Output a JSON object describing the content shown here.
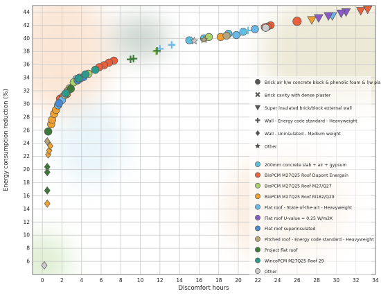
{
  "chart_data": {
    "type": "scatter",
    "title": "",
    "xlabel": "Discomfort hours",
    "ylabel": "Energy consumption reduction (%)",
    "xlim": [
      -1,
      34
    ],
    "ylim": [
      4,
      45
    ],
    "x_ticks": [
      "0",
      "2",
      "4",
      "6",
      "8",
      "10",
      "12",
      "14",
      "16",
      "18",
      "20",
      "22",
      "24",
      "26",
      "28",
      "30",
      "32",
      "34"
    ],
    "y_ticks": [
      "6",
      "8",
      "10",
      "12",
      "14",
      "16",
      "18",
      "20",
      "22",
      "24",
      "26",
      "28",
      "30",
      "32",
      "34",
      "36",
      "38",
      "40",
      "42",
      "44"
    ],
    "grid": true,
    "legend_position": "right",
    "shape_legend": [
      {
        "marker": "circle",
        "label": "Brick air h/w concrete block & phenolic foam & l/w plaster"
      },
      {
        "marker": "x",
        "label": "Brick cavity with dense plaster"
      },
      {
        "marker": "triangle",
        "label": "Super insulated brick/block external wall"
      },
      {
        "marker": "plus",
        "label": "Wall - Energy code standard - Heavyweight"
      },
      {
        "marker": "diamond",
        "label": "Wall - Uninsulated - Medium weight"
      },
      {
        "marker": "star",
        "label": "Other"
      }
    ],
    "series": [
      {
        "name": "200mm concrete slab + air + gypsum",
        "color": "#5bc0de",
        "points": [
          [
            19,
            40.7
          ],
          [
            20.5,
            41
          ],
          [
            21,
            41.2
          ],
          [
            15,
            39.7
          ],
          [
            16.5,
            40
          ],
          [
            3.5,
            33.8
          ],
          [
            3.8,
            34
          ]
        ]
      },
      {
        "name": "BioPCM M27Q25 Roof Dupont Energain",
        "color": "#e8603c",
        "points": [
          [
            33.2,
            44.4
          ],
          [
            32.5,
            44.2
          ],
          [
            26,
            42.6
          ],
          [
            23.3,
            42
          ],
          [
            23,
            41.8
          ],
          [
            22.7,
            41.7
          ],
          [
            7.3,
            36.6
          ],
          [
            6.8,
            36.3
          ],
          [
            6.3,
            35.9
          ],
          [
            5.8,
            35.6
          ],
          [
            1.8,
            30.8
          ],
          [
            2.1,
            31.1
          ]
        ]
      },
      {
        "name": "BioPCM M27Q25 Roof M27/Q27",
        "color": "#a8d26a",
        "points": [
          [
            3.2,
            33.3
          ],
          [
            3.9,
            33.9
          ],
          [
            4.7,
            34.6
          ],
          [
            2.8,
            32.4
          ],
          [
            17,
            40.2
          ],
          [
            11.6,
            38
          ]
        ]
      },
      {
        "name": "BioPCM M27Q25 Roof M182/Q29",
        "color": "#f0a030",
        "points": [
          [
            0.5,
            14.8
          ],
          [
            0.6,
            22.3
          ],
          [
            0.7,
            22.9
          ],
          [
            0.8,
            23.6
          ],
          [
            0.9,
            26.9
          ],
          [
            1.0,
            27.6
          ],
          [
            1.2,
            28.5
          ],
          [
            1.4,
            29.1
          ],
          [
            18.2,
            40.2
          ],
          [
            27.5,
            42.8
          ],
          [
            2.5,
            31.5
          ]
        ]
      },
      {
        "name": "Flat roof - State-of-the-art - Heavyweight",
        "color": "#6ab8e8",
        "points": [
          [
            12,
            38.4
          ],
          [
            13.2,
            39
          ],
          [
            1.6,
            29.8
          ],
          [
            29.6,
            43.4
          ],
          [
            20.2,
            40.9
          ],
          [
            21.7,
            41.4
          ],
          [
            2.0,
            30.6
          ],
          [
            19.8,
            40.5
          ]
        ]
      },
      {
        "name": "Flat roof U-value = 0.25 W/m2K",
        "color": "#8a5cc8",
        "points": [
          [
            31,
            44
          ],
          [
            30.5,
            43.8
          ],
          [
            29.2,
            43.4
          ],
          [
            28.2,
            43.1
          ]
        ]
      },
      {
        "name": "Flat roof superinsulated",
        "color": "#4a8ad0",
        "points": [
          [
            3.6,
            33.6
          ],
          [
            4.2,
            34.1
          ],
          [
            1.7,
            30.1
          ]
        ]
      },
      {
        "name": "Pitched roof - Energy code standard - Heavyweight",
        "color": "#b7a47a",
        "points": [
          [
            2.3,
            31.4
          ],
          [
            2.6,
            32
          ],
          [
            16.5,
            39.8
          ],
          [
            18.8,
            40.4
          ],
          [
            0.5,
            24.3
          ]
        ]
      },
      {
        "name": "Project flat roof",
        "color": "#3d7a3a",
        "points": [
          [
            0.5,
            16.8
          ],
          [
            0.5,
            19.6
          ],
          [
            0.5,
            20.4
          ],
          [
            2.9,
            32.3
          ],
          [
            9.3,
            36.9
          ],
          [
            9.0,
            36.8
          ],
          [
            11.7,
            38.1
          ],
          [
            0.6,
            25.8
          ]
        ]
      },
      {
        "name": "WincoPCM M27Q25 Roof 29",
        "color": "#2a9a8a",
        "points": [
          [
            3.7,
            33.9
          ],
          [
            4.4,
            34.5
          ],
          [
            5.4,
            35.2
          ],
          [
            2.4,
            31.6
          ]
        ]
      },
      {
        "name": "Other",
        "color": "#cccccc",
        "points": [
          [
            0.2,
            5.4
          ],
          [
            22.8,
            41.6
          ],
          [
            15.5,
            39.6
          ]
        ]
      }
    ]
  }
}
